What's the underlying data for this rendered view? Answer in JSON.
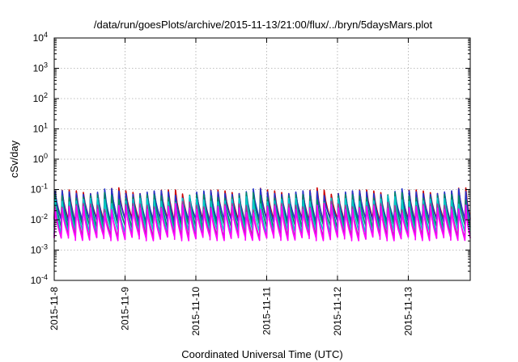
{
  "chart_data": {
    "type": "line",
    "title": "/data/run/goesPlots/archive/2015-11-13/21:00/flux/../bryn/5daysMars.plot",
    "xlabel": "Coordinated Universal Time (UTC)",
    "ylabel": "cSv/day",
    "yscale": "log",
    "ylim": [
      0.0001,
      10000
    ],
    "y_ticks": [
      {
        "base": "10",
        "exp": "-4"
      },
      {
        "base": "10",
        "exp": "-3"
      },
      {
        "base": "10",
        "exp": "-2"
      },
      {
        "base": "10",
        "exp": "-1"
      },
      {
        "base": "10",
        "exp": "0"
      },
      {
        "base": "10",
        "exp": "1"
      },
      {
        "base": "10",
        "exp": "2"
      },
      {
        "base": "10",
        "exp": "3"
      },
      {
        "base": "10",
        "exp": "4"
      }
    ],
    "x_range_days": [
      "2015-11-08",
      "2015-11-13 21:00"
    ],
    "x_ticks": [
      "2015-11-8",
      "2015-11-9",
      "2015-11-10",
      "2015-11-11",
      "2015-11-12",
      "2015-11-13"
    ],
    "grid": true,
    "legend": "none",
    "sawtooth_period_hours": 2.4,
    "series": [
      {
        "color": "#cc0000",
        "peak": 0.085,
        "trough": 0.0095
      },
      {
        "color": "#2233cc",
        "peak": 0.08,
        "trough": 0.009
      },
      {
        "color": "#008866",
        "peak": 0.06,
        "trough": 0.006
      },
      {
        "color": "#00cccc",
        "peak": 0.045,
        "trough": 0.004
      },
      {
        "color": "#aa3399",
        "peak": 0.03,
        "trough": 0.0028
      },
      {
        "color": "#ff00ff",
        "peak": 0.025,
        "trough": 0.0024
      }
    ]
  }
}
